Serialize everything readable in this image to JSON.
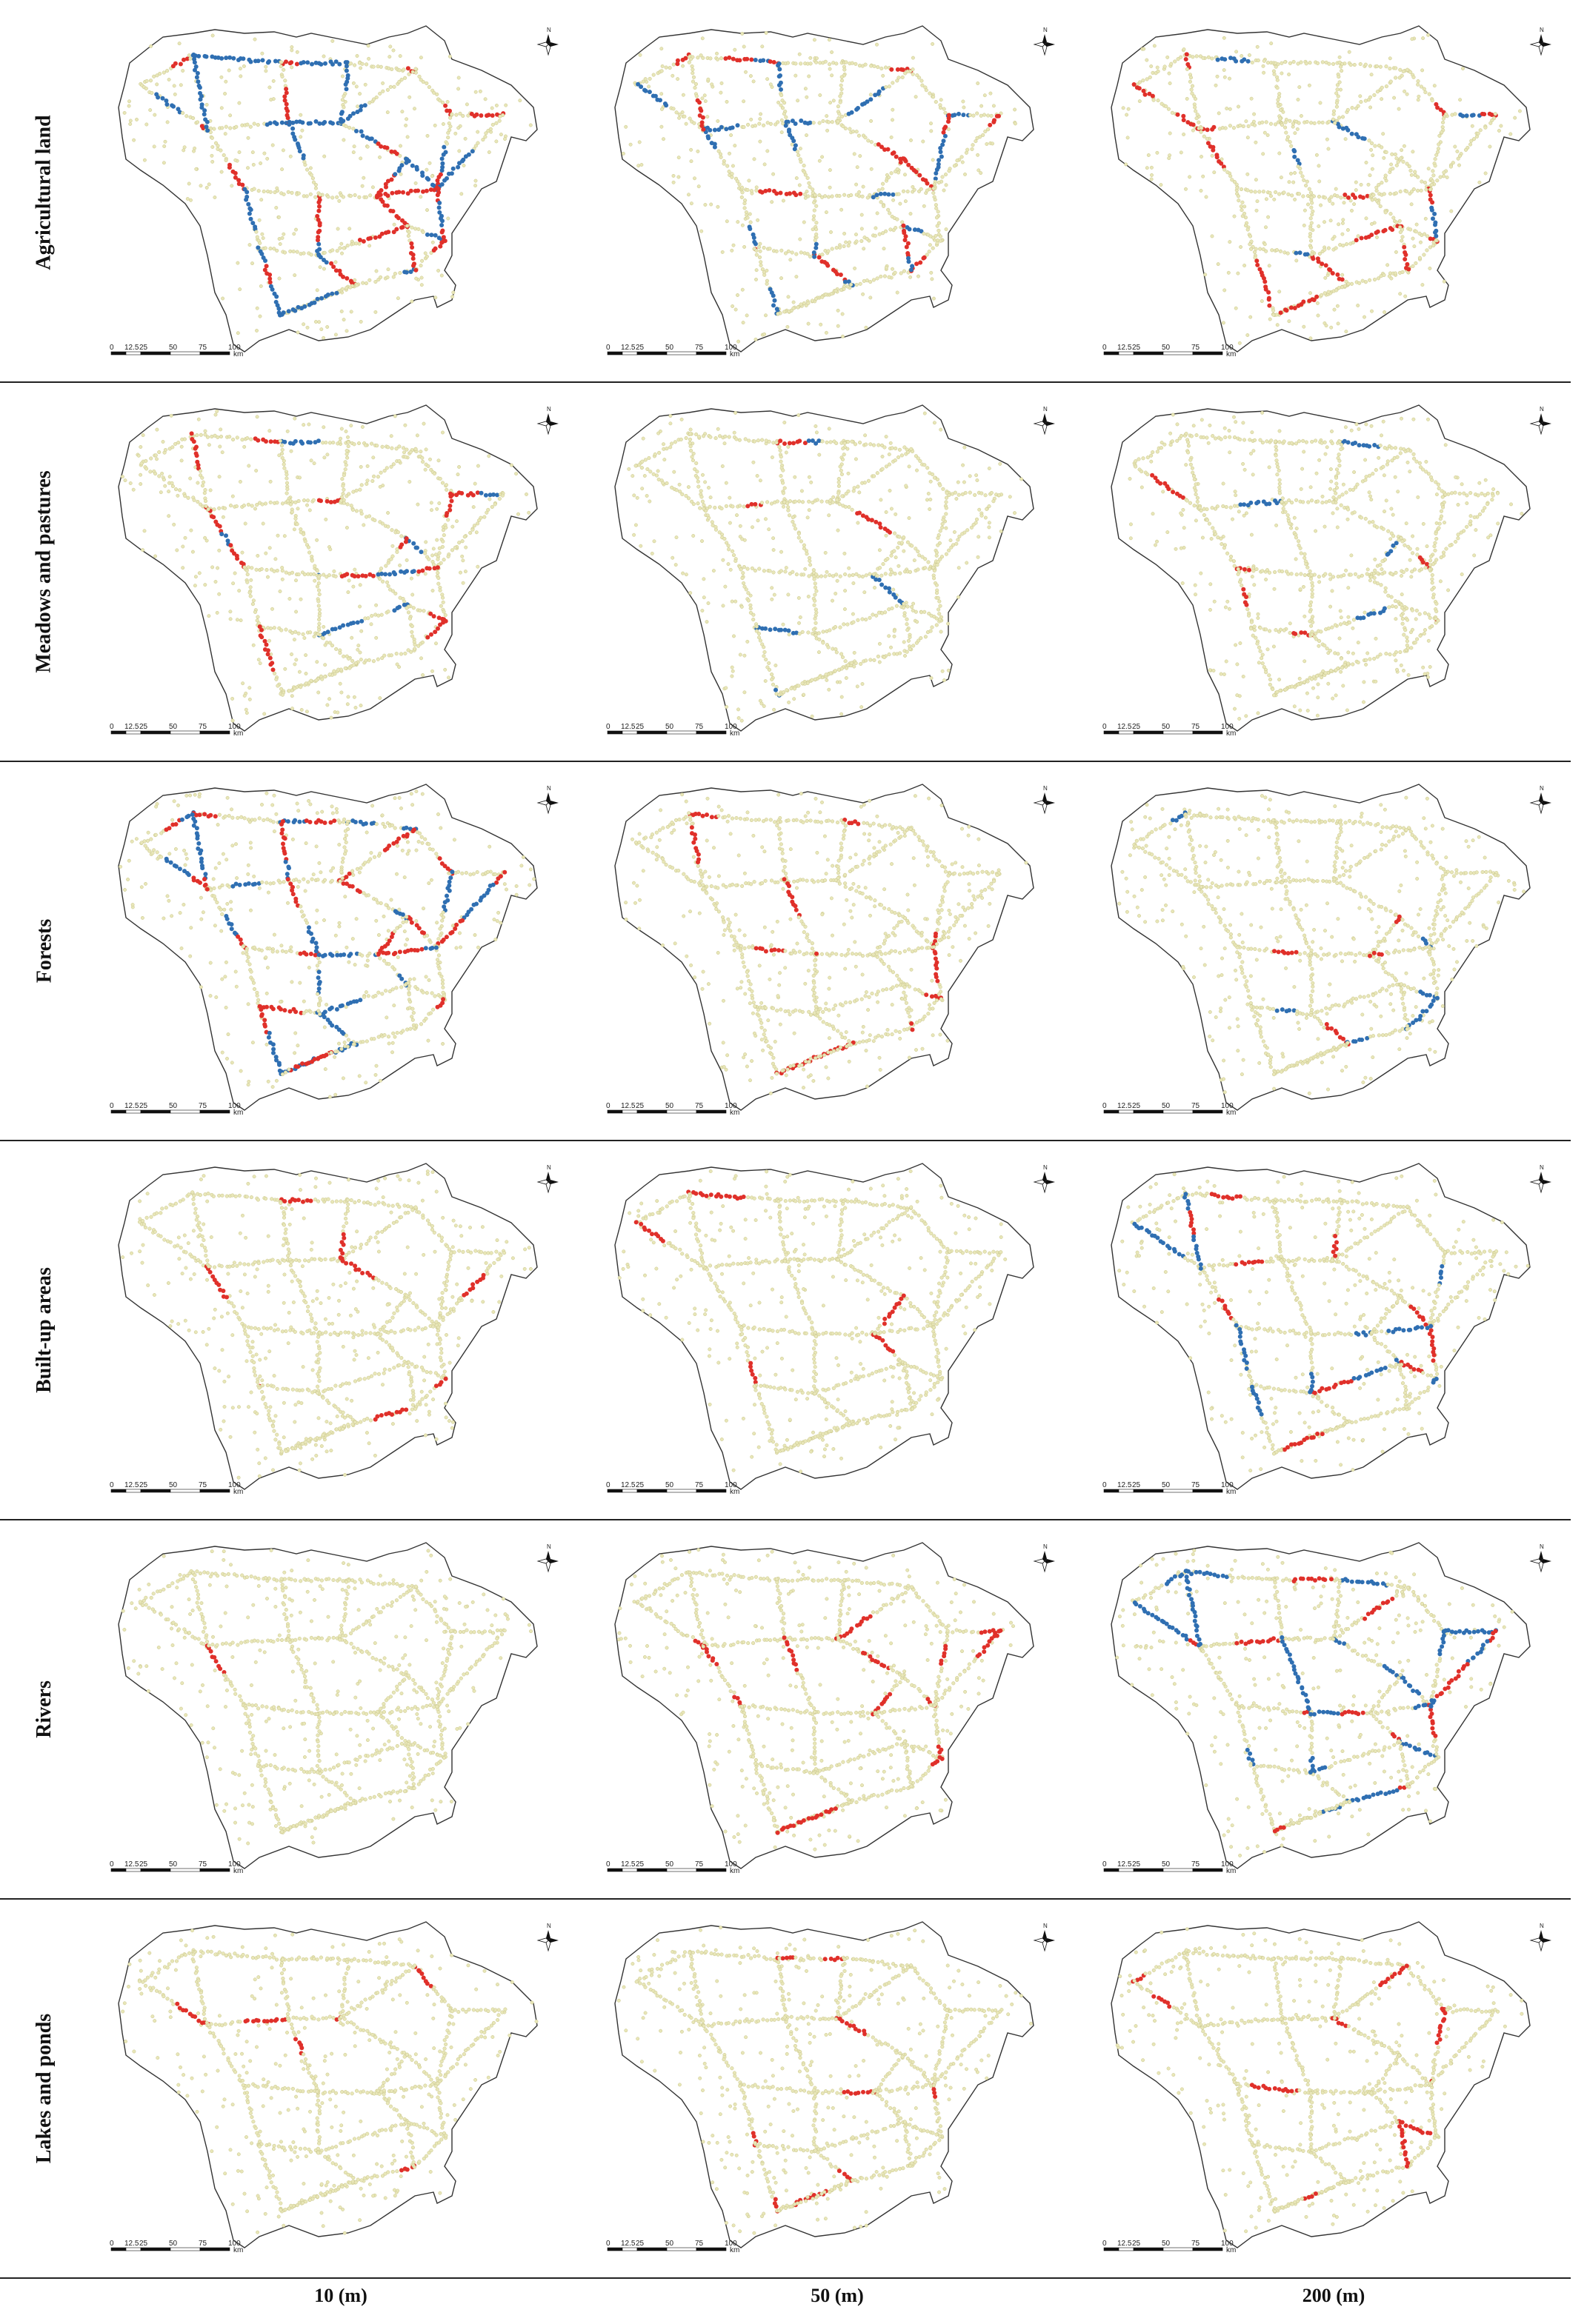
{
  "row_labels": [
    "Agricultural land",
    "Meadows and pastures",
    "Forests",
    "Built-up areas",
    "Rivers",
    "Lakes and ponds"
  ],
  "column_labels": [
    "10 (m)",
    "50 (m)",
    "200 (m)"
  ],
  "scale_bar": {
    "ticks": [
      "0",
      "12.5",
      "25",
      "50",
      "75",
      "100"
    ],
    "unit": "km"
  },
  "north_label": "N",
  "colors": {
    "background_points": "#e8e6b8",
    "point_outline": "#c9c68a",
    "hotspot": "#e0302a",
    "coldspot": "#2f6fb2",
    "border": "#333333"
  },
  "panels": [
    [
      {
        "red": "high",
        "blue": "high"
      },
      {
        "red": "mid",
        "blue": "mid"
      },
      {
        "red": "mid",
        "blue": "low"
      }
    ],
    [
      {
        "red": "mid",
        "blue": "low"
      },
      {
        "red": "low",
        "blue": "low"
      },
      {
        "red": "low",
        "blue": "low"
      }
    ],
    [
      {
        "red": "high",
        "blue": "high"
      },
      {
        "red": "mid",
        "blue": "low"
      },
      {
        "red": "low",
        "blue": "low"
      }
    ],
    [
      {
        "red": "mid",
        "blue": "none"
      },
      {
        "red": "low",
        "blue": "none"
      },
      {
        "red": "mid",
        "blue": "mid"
      }
    ],
    [
      {
        "red": "low",
        "blue": "none"
      },
      {
        "red": "mid",
        "blue": "none"
      },
      {
        "red": "mid",
        "blue": "high"
      }
    ],
    [
      {
        "red": "low",
        "blue": "none"
      },
      {
        "red": "mid",
        "blue": "none"
      },
      {
        "red": "mid",
        "blue": "none"
      }
    ]
  ]
}
